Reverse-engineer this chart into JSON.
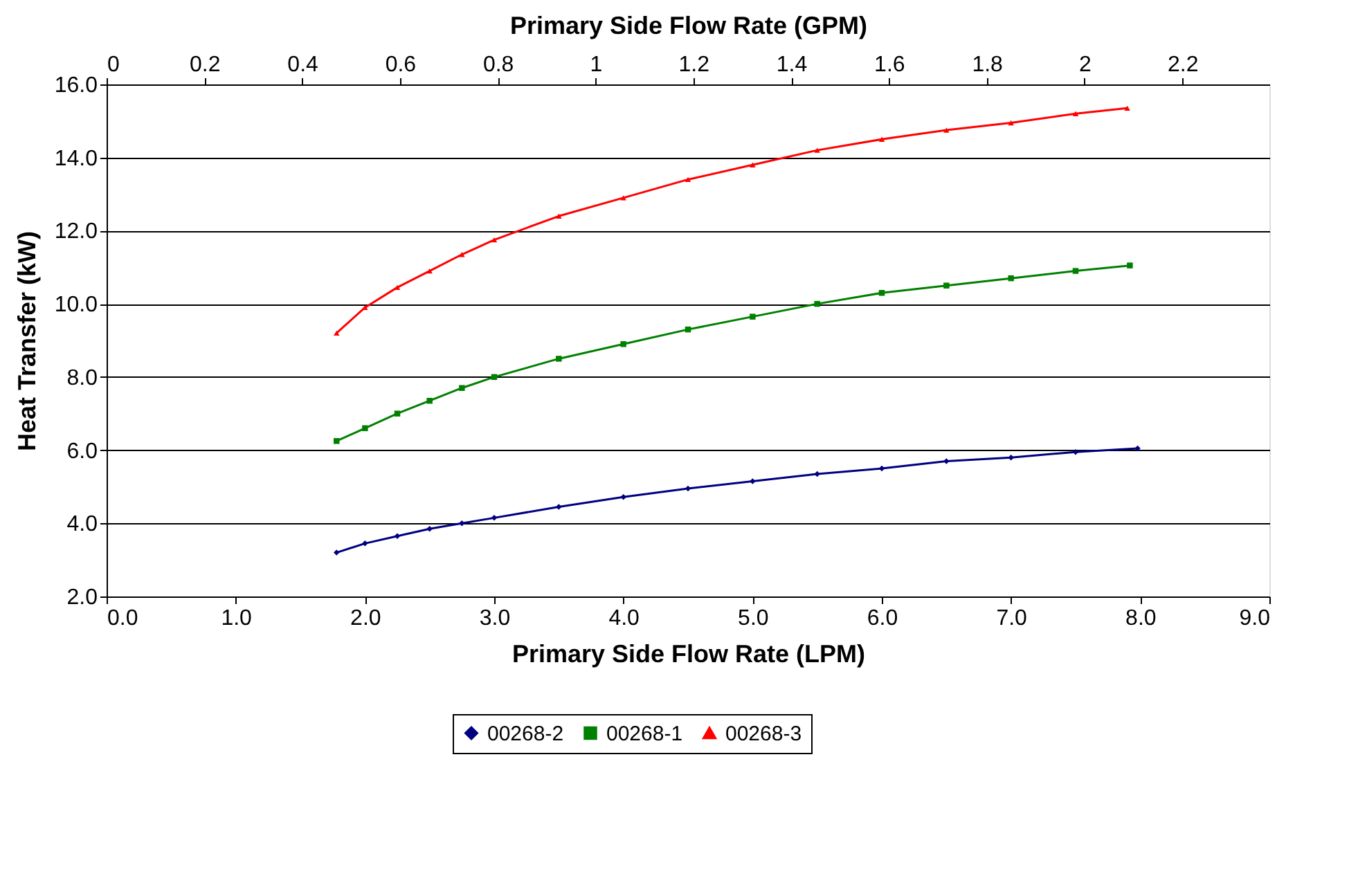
{
  "chart_data": {
    "type": "line",
    "xlabel": "Primary Side Flow Rate (LPM)",
    "x2label": "Primary Side Flow Rate (GPM)",
    "ylabel": "Heat Transfer (kW)",
    "series": [
      {
        "name": "00268-2",
        "color": "#000080",
        "marker": "diamond",
        "x": [
          1.78,
          2.0,
          2.25,
          2.5,
          2.75,
          3.0,
          3.5,
          4.0,
          4.5,
          5.0,
          5.5,
          6.0,
          6.5,
          7.0,
          7.5,
          7.98
        ],
        "values": [
          3.2,
          3.45,
          3.65,
          3.85,
          4.0,
          4.15,
          4.45,
          4.72,
          4.95,
          5.15,
          5.35,
          5.5,
          5.7,
          5.8,
          5.95,
          6.05
        ]
      },
      {
        "name": "00268-1",
        "color": "#008000",
        "marker": "square",
        "x": [
          1.78,
          2.0,
          2.25,
          2.5,
          2.75,
          3.0,
          3.5,
          4.0,
          4.5,
          5.0,
          5.5,
          6.0,
          6.5,
          7.0,
          7.5,
          7.92
        ],
        "values": [
          6.25,
          6.6,
          7.0,
          7.35,
          7.7,
          8.0,
          8.5,
          8.9,
          9.3,
          9.65,
          10.0,
          10.3,
          10.5,
          10.7,
          10.9,
          11.05
        ]
      },
      {
        "name": "00268-3",
        "color": "#ff0000",
        "marker": "triangle",
        "x": [
          1.78,
          2.0,
          2.25,
          2.5,
          2.75,
          3.0,
          3.5,
          4.0,
          4.5,
          5.0,
          5.5,
          6.0,
          6.5,
          7.0,
          7.5,
          7.9
        ],
        "values": [
          9.2,
          9.9,
          10.45,
          10.9,
          11.35,
          11.75,
          12.4,
          12.9,
          13.4,
          13.8,
          14.2,
          14.5,
          14.75,
          14.95,
          15.2,
          15.35
        ]
      }
    ],
    "xlim": [
      0,
      9
    ],
    "xticks": [
      {
        "value": 0,
        "label": "0.0"
      },
      {
        "value": 1,
        "label": "1.0"
      },
      {
        "value": 2,
        "label": "2.0"
      },
      {
        "value": 3,
        "label": "3.0"
      },
      {
        "value": 4,
        "label": "4.0"
      },
      {
        "value": 5,
        "label": "5.0"
      },
      {
        "value": 6,
        "label": "6.0"
      },
      {
        "value": 7,
        "label": "7.0"
      },
      {
        "value": 8,
        "label": "8.0"
      },
      {
        "value": 9,
        "label": "9.0"
      }
    ],
    "x2lim": [
      0,
      2.378
    ],
    "x2ticks": [
      0,
      0.2,
      0.4,
      0.6,
      0.8,
      1,
      1.2,
      1.4,
      1.6,
      1.8,
      2,
      2.2
    ],
    "ylim": [
      2,
      16
    ],
    "yticks": [
      {
        "value": 2,
        "label": "2.0"
      },
      {
        "value": 4,
        "label": "4.0"
      },
      {
        "value": 6,
        "label": "6.0"
      },
      {
        "value": 8,
        "label": "8.0"
      },
      {
        "value": 10,
        "label": "10.0"
      },
      {
        "value": 12,
        "label": "12.0"
      },
      {
        "value": 14,
        "label": "14.0"
      },
      {
        "value": 16,
        "label": "16.0"
      }
    ],
    "grid": "y",
    "legend": "bottom",
    "line_style": "solid"
  }
}
